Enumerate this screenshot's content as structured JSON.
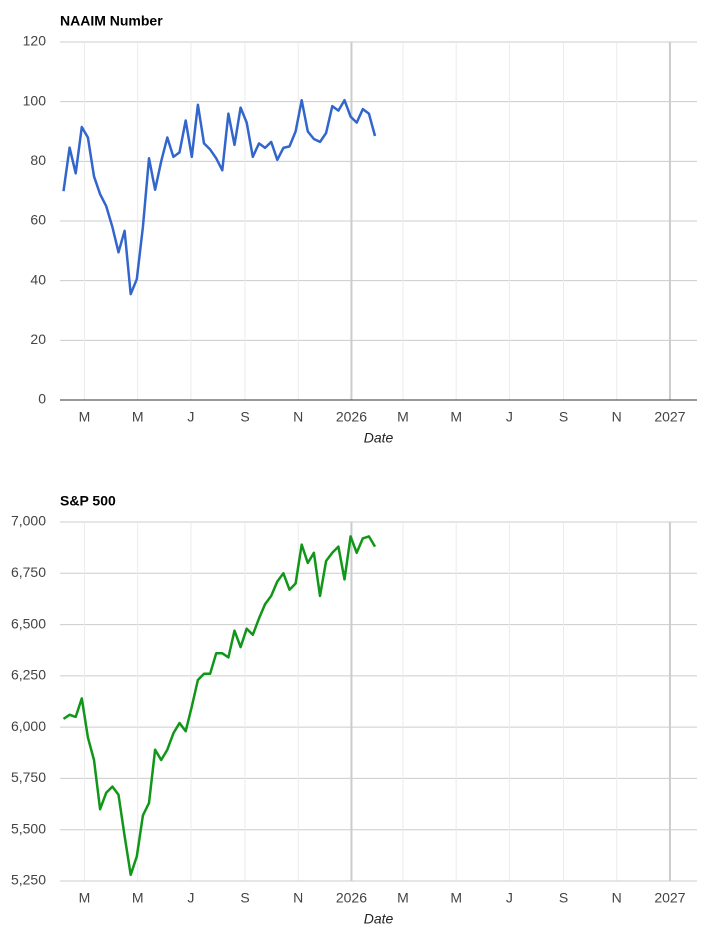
{
  "chart_data": [
    {
      "type": "line",
      "title": "NAAIM Number",
      "x_label": "Date",
      "x": [
        "2025-02-05",
        "2025-02-12",
        "2025-02-19",
        "2025-02-26",
        "2025-03-05",
        "2025-03-12",
        "2025-03-19",
        "2025-03-26",
        "2025-04-02",
        "2025-04-09",
        "2025-04-16",
        "2025-04-23",
        "2025-04-30",
        "2025-05-07",
        "2025-05-14",
        "2025-05-21",
        "2025-05-28",
        "2025-06-04",
        "2025-06-11",
        "2025-06-18",
        "2025-06-25",
        "2025-07-02",
        "2025-07-09",
        "2025-07-16",
        "2025-07-23",
        "2025-07-30",
        "2025-08-06",
        "2025-08-13",
        "2025-08-20",
        "2025-08-27",
        "2025-09-03",
        "2025-09-10",
        "2025-09-17",
        "2025-09-24",
        "2025-10-01",
        "2025-10-08",
        "2025-10-15",
        "2025-10-22",
        "2025-10-29",
        "2025-11-05",
        "2025-11-12",
        "2025-11-19",
        "2025-11-26",
        "2025-12-03",
        "2025-12-10",
        "2025-12-17",
        "2025-12-24",
        "2025-12-31",
        "2026-01-07",
        "2026-01-14",
        "2026-01-21",
        "2026-01-28"
      ],
      "values": [
        70,
        84.6,
        76,
        91.5,
        88,
        75,
        69,
        65,
        58,
        49.5,
        56.7,
        35.5,
        40.5,
        58,
        81,
        70.5,
        80,
        88,
        81.5,
        83,
        93.7,
        81.5,
        99,
        86,
        84,
        81,
        77,
        96,
        85.5,
        98,
        93,
        81.5,
        86,
        84.5,
        86.5,
        80.5,
        84.5,
        85,
        90,
        100.5,
        90,
        87.5,
        86.5,
        89.5,
        98.5,
        97,
        100.5,
        95,
        93,
        97.5,
        96,
        88.5
      ],
      "color": "#3366cc",
      "xlim": [
        "2025-02",
        "2027-02"
      ],
      "xticks": [
        {
          "value": "2025-03",
          "label": "M"
        },
        {
          "value": "2025-05",
          "label": "M"
        },
        {
          "value": "2025-07",
          "label": "J"
        },
        {
          "value": "2025-09",
          "label": "S"
        },
        {
          "value": "2025-11",
          "label": "N"
        },
        {
          "value": "2026-01",
          "label": "2026"
        },
        {
          "value": "2026-03",
          "label": "M"
        },
        {
          "value": "2026-05",
          "label": "M"
        },
        {
          "value": "2026-07",
          "label": "J"
        },
        {
          "value": "2026-09",
          "label": "S"
        },
        {
          "value": "2026-11",
          "label": "N"
        },
        {
          "value": "2027-01",
          "label": "2027"
        }
      ],
      "ylim": [
        0,
        120
      ],
      "yticks": [
        0,
        20,
        40,
        60,
        80,
        100,
        120
      ],
      "grid": true
    },
    {
      "type": "line",
      "title": "S&P 500",
      "x_label": "Date",
      "x": [
        "2025-02-05",
        "2025-02-12",
        "2025-02-19",
        "2025-02-26",
        "2025-03-05",
        "2025-03-12",
        "2025-03-19",
        "2025-03-26",
        "2025-04-02",
        "2025-04-09",
        "2025-04-16",
        "2025-04-23",
        "2025-04-30",
        "2025-05-07",
        "2025-05-14",
        "2025-05-21",
        "2025-05-28",
        "2025-06-04",
        "2025-06-11",
        "2025-06-18",
        "2025-06-25",
        "2025-07-02",
        "2025-07-09",
        "2025-07-16",
        "2025-07-23",
        "2025-07-30",
        "2025-08-06",
        "2025-08-13",
        "2025-08-20",
        "2025-08-27",
        "2025-09-03",
        "2025-09-10",
        "2025-09-17",
        "2025-09-24",
        "2025-10-01",
        "2025-10-08",
        "2025-10-15",
        "2025-10-22",
        "2025-10-29",
        "2025-11-05",
        "2025-11-12",
        "2025-11-19",
        "2025-11-26",
        "2025-12-03",
        "2025-12-10",
        "2025-12-17",
        "2025-12-24",
        "2025-12-31",
        "2026-01-07",
        "2026-01-14",
        "2026-01-21",
        "2026-01-28"
      ],
      "values": [
        6040,
        6060,
        6050,
        6140,
        5950,
        5840,
        5600,
        5680,
        5710,
        5670,
        5470,
        5280,
        5370,
        5570,
        5630,
        5890,
        5840,
        5890,
        5970,
        6020,
        5980,
        6100,
        6230,
        6260,
        6260,
        6360,
        6360,
        6340,
        6470,
        6390,
        6480,
        6450,
        6530,
        6600,
        6640,
        6710,
        6750,
        6670,
        6700,
        6890,
        6800,
        6850,
        6640,
        6810,
        6850,
        6880,
        6720,
        6930,
        6850,
        6920,
        6930,
        6880
      ],
      "color": "#109618",
      "xlim": [
        "2025-02",
        "2027-02"
      ],
      "xticks": [
        {
          "value": "2025-03",
          "label": "M"
        },
        {
          "value": "2025-05",
          "label": "M"
        },
        {
          "value": "2025-07",
          "label": "J"
        },
        {
          "value": "2025-09",
          "label": "S"
        },
        {
          "value": "2025-11",
          "label": "N"
        },
        {
          "value": "2026-01",
          "label": "2026"
        },
        {
          "value": "2026-03",
          "label": "M"
        },
        {
          "value": "2026-05",
          "label": "M"
        },
        {
          "value": "2026-07",
          "label": "J"
        },
        {
          "value": "2026-09",
          "label": "S"
        },
        {
          "value": "2026-11",
          "label": "N"
        },
        {
          "value": "2027-01",
          "label": "2027"
        }
      ],
      "ylim": [
        5250,
        7000
      ],
      "yticks": [
        {
          "value": 5250,
          "label": "5,250"
        },
        {
          "value": 5500,
          "label": "5,500"
        },
        {
          "value": 5750,
          "label": "5,750"
        },
        {
          "value": 6000,
          "label": "6,000"
        },
        {
          "value": 6250,
          "label": "6,250"
        },
        {
          "value": 6500,
          "label": "6,500"
        },
        {
          "value": 6750,
          "label": "6,750"
        },
        {
          "value": 7000,
          "label": "7,000"
        }
      ],
      "grid": true
    }
  ]
}
